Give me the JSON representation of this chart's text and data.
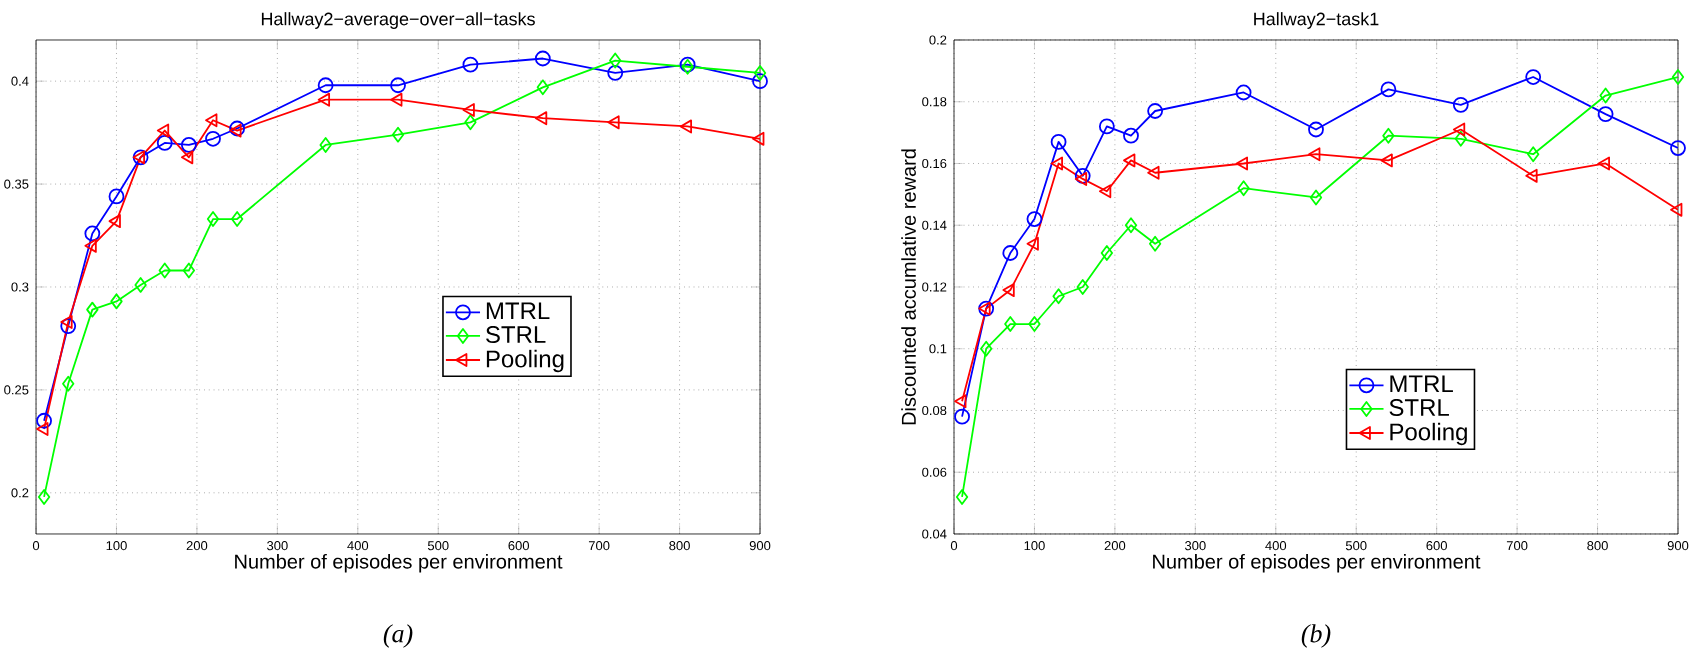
{
  "chart_data": [
    {
      "type": "line",
      "title": "Hallway2−average−over−all−tasks",
      "xlabel": "Number of episodes per environment",
      "annotations": [
        "(a)"
      ],
      "x": [
        10,
        40,
        70,
        100,
        130,
        160,
        190,
        220,
        250,
        360,
        450,
        540,
        630,
        720,
        810,
        900
      ],
      "series": [
        {
          "name": "MTRL",
          "color": "#0000ff",
          "marker": "circle",
          "values": [
            0.235,
            0.281,
            0.326,
            0.344,
            0.363,
            0.37,
            0.369,
            0.372,
            0.377,
            0.398,
            0.398,
            0.408,
            0.411,
            0.404,
            0.408,
            0.4
          ]
        },
        {
          "name": "STRL",
          "color": "#00ff00",
          "marker": "diamond",
          "values": [
            0.198,
            0.253,
            0.289,
            0.293,
            0.301,
            0.308,
            0.308,
            0.333,
            0.333,
            0.369,
            0.374,
            0.38,
            0.397,
            0.41,
            0.407,
            0.404
          ]
        },
        {
          "name": "Pooling",
          "color": "#ff0000",
          "marker": "triangle",
          "values": [
            0.231,
            0.283,
            0.32,
            0.332,
            0.363,
            0.376,
            0.363,
            0.381,
            0.376,
            0.391,
            0.391,
            0.386,
            0.382,
            0.38,
            0.378,
            0.372
          ]
        }
      ],
      "xlim": [
        0,
        900
      ],
      "xticks": [
        0,
        100,
        200,
        300,
        400,
        500,
        600,
        700,
        800,
        900
      ],
      "ylim": [
        0.18,
        0.42
      ],
      "yticks": [
        0.2,
        0.25,
        0.3,
        0.35,
        0.4
      ],
      "grid": true,
      "legend": "center right",
      "line_style": "solid"
    },
    {
      "type": "line",
      "title": "Hallway2−task1",
      "xlabel": "Number of episodes per environment",
      "ylabel": "Discounted accumlative reward",
      "annotations": [
        "(b)"
      ],
      "x": [
        10,
        40,
        70,
        100,
        130,
        160,
        190,
        220,
        250,
        360,
        450,
        540,
        630,
        720,
        810,
        900
      ],
      "series": [
        {
          "name": "MTRL",
          "color": "#0000ff",
          "marker": "circle",
          "values": [
            0.078,
            0.113,
            0.131,
            0.142,
            0.167,
            0.156,
            0.172,
            0.169,
            0.177,
            0.183,
            0.171,
            0.184,
            0.179,
            0.188,
            0.176,
            0.165
          ]
        },
        {
          "name": "STRL",
          "color": "#00ff00",
          "marker": "diamond",
          "values": [
            0.052,
            0.1,
            0.108,
            0.108,
            0.117,
            0.12,
            0.131,
            0.14,
            0.134,
            0.152,
            0.149,
            0.169,
            0.168,
            0.163,
            0.182,
            0.188
          ]
        },
        {
          "name": "Pooling",
          "color": "#ff0000",
          "marker": "triangle",
          "values": [
            0.083,
            0.113,
            0.119,
            0.134,
            0.16,
            0.155,
            0.151,
            0.161,
            0.157,
            0.16,
            0.163,
            0.161,
            0.171,
            0.156,
            0.16,
            0.145
          ]
        }
      ],
      "xlim": [
        0,
        900
      ],
      "xticks": [
        0,
        100,
        200,
        300,
        400,
        500,
        600,
        700,
        800,
        900
      ],
      "ylim": [
        0.04,
        0.2
      ],
      "yticks": [
        0.04,
        0.06,
        0.08,
        0.1,
        0.12,
        0.14,
        0.16,
        0.18,
        0.2
      ],
      "grid": true,
      "legend": "bottom right",
      "line_style": "solid"
    }
  ]
}
